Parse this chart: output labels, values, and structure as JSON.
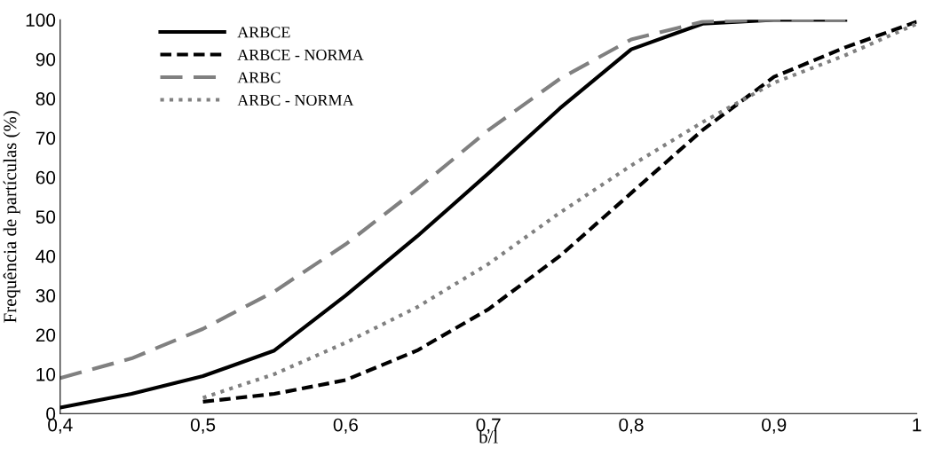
{
  "chart_data": {
    "type": "line",
    "xlabel": "b/l",
    "ylabel": "Frequência de partículas (%)",
    "x": [
      0.4,
      0.45,
      0.5,
      0.55,
      0.6,
      0.65,
      0.7,
      0.75,
      0.8,
      0.85,
      0.9,
      0.95,
      1.0
    ],
    "series": [
      {
        "name": "ARBCE",
        "color": "#000000",
        "line_style": "solid",
        "values": [
          1.5,
          5,
          9.5,
          16,
          30,
          45,
          61,
          77.5,
          92.5,
          99,
          100,
          100,
          null
        ]
      },
      {
        "name": "ARBCE - NORMA",
        "color": "#000000",
        "line_style": "dashed",
        "values": [
          null,
          null,
          3,
          5,
          8.5,
          16,
          26.5,
          40,
          56,
          72,
          85.5,
          93,
          99.5
        ]
      },
      {
        "name": "ARBC",
        "color": "#808080",
        "line_style": "longdash",
        "values": [
          9,
          14,
          21.5,
          31,
          43,
          57,
          72,
          85,
          95,
          99.5,
          100,
          100,
          null
        ]
      },
      {
        "name": "ARBC - NORMA",
        "color": "#808080",
        "line_style": "dotted",
        "values": [
          null,
          null,
          4,
          10,
          18,
          27,
          38,
          51,
          63,
          74,
          84,
          91,
          99
        ]
      }
    ],
    "xlim": [
      0.4,
      1.0
    ],
    "xticks": [
      {
        "value": 0.4,
        "label": "0,4"
      },
      {
        "value": 0.5,
        "label": "0,5"
      },
      {
        "value": 0.6,
        "label": "0,6"
      },
      {
        "value": 0.7,
        "label": "0,7"
      },
      {
        "value": 0.8,
        "label": "0,8"
      },
      {
        "value": 0.9,
        "label": "0,9"
      },
      {
        "value": 1.0,
        "label": "1"
      }
    ],
    "ylim": [
      0,
      100
    ],
    "yticks": [
      0,
      10,
      20,
      30,
      40,
      50,
      60,
      70,
      80,
      90,
      100
    ],
    "grid": false,
    "legend": "top left",
    "marker": "none"
  }
}
